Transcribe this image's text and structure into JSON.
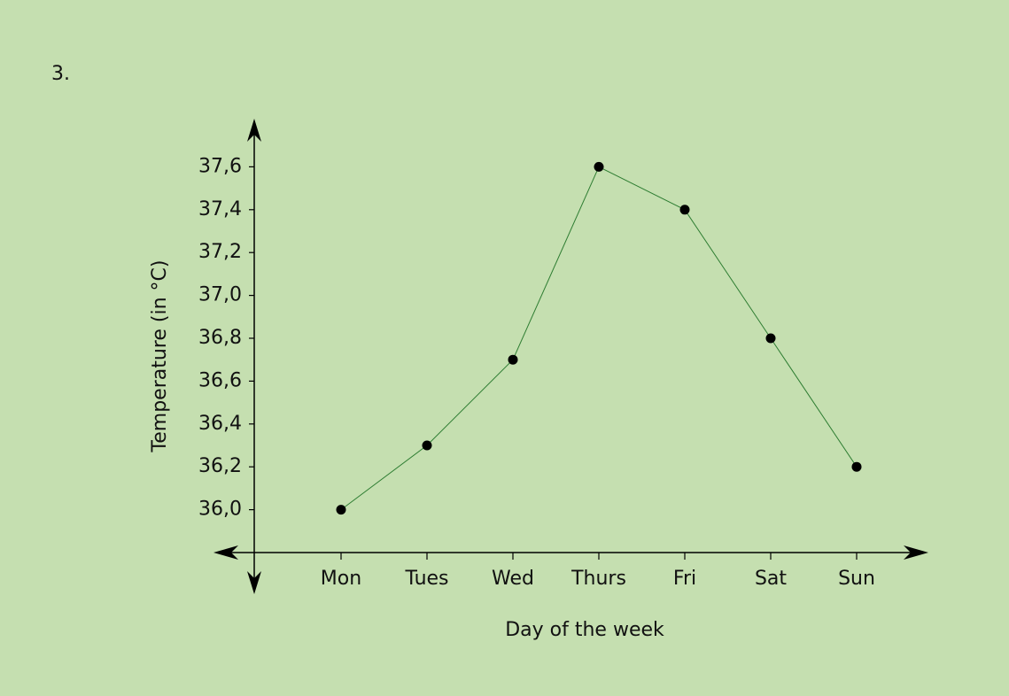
{
  "chart_data": {
    "type": "line",
    "annotations": [
      "3."
    ],
    "xlabel": "Day of the week",
    "ylabel": "Temperature (in °C)",
    "categories": [
      "Mon",
      "Tues",
      "Wed",
      "Thurs",
      "Fri",
      "Sat",
      "Sun"
    ],
    "values": [
      36.0,
      36.3,
      36.7,
      37.6,
      37.4,
      36.8,
      36.2
    ],
    "color": "#2e7d32",
    "marker_color": "#000000",
    "ylim": [
      35.8,
      37.8
    ],
    "yticks": [
      {
        "value": 36.0,
        "label": "36,0"
      },
      {
        "value": 36.2,
        "label": "36,2"
      },
      {
        "value": 36.4,
        "label": "36,4"
      },
      {
        "value": 36.6,
        "label": "36,6"
      },
      {
        "value": 36.8,
        "label": "36,8"
      },
      {
        "value": 37.0,
        "label": "37,0"
      },
      {
        "value": 37.2,
        "label": "37,2"
      },
      {
        "value": 37.4,
        "label": "37,4"
      },
      {
        "value": 37.6,
        "label": "37,6"
      }
    ],
    "grid": false
  }
}
